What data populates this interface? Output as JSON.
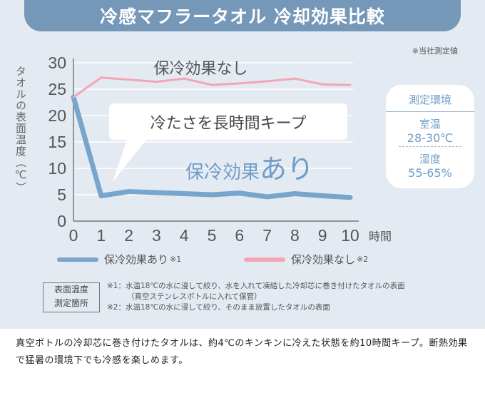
{
  "header": {
    "title": "冷感マフラータオル 冷却効果比較"
  },
  "note": "※当社測定値",
  "chart_data": {
    "type": "line",
    "ylabel": "タオルの表面温度（℃）",
    "xlabel": "時間",
    "x": [
      0,
      1,
      2,
      3,
      4,
      5,
      6,
      7,
      8,
      9,
      10
    ],
    "xlim": [
      0,
      10
    ],
    "ylim": [
      0,
      30
    ],
    "yticks": [
      0,
      5,
      10,
      15,
      20,
      25,
      30
    ],
    "series": [
      {
        "name": "保冷効果あり",
        "mark": "※1",
        "color": "#78a5cc",
        "values": [
          23.5,
          4.8,
          5.6,
          5.4,
          5.2,
          5.0,
          5.3,
          4.6,
          5.2,
          4.8,
          4.5
        ]
      },
      {
        "name": "保冷効果なし",
        "mark": "※2",
        "color": "#f4a5b5",
        "values": [
          23.5,
          27.2,
          26.8,
          26.4,
          27.0,
          25.8,
          26.1,
          26.5,
          27.0,
          25.9,
          25.8
        ]
      }
    ],
    "annotations": {
      "without_label": "保冷効果なし",
      "callout": "冷たさを長時間キープ",
      "with_label_part1": "保冷効果",
      "with_label_part2": "あり"
    }
  },
  "environment": {
    "title": "測定環境",
    "room_label": "室温",
    "room_value": "28-30℃",
    "humidity_label": "湿度",
    "humidity_value": "55-65%"
  },
  "measurement": {
    "box_line1": "表面温度",
    "box_line2": "測定箇所",
    "foot1": "※1：水温18℃の水に浸して絞り、水を入れて凍結した冷却芯に巻き付けたタオルの表面",
    "foot1b": "（真空ステンレスボトルに入れて保管）",
    "foot2": "※2：水温18℃の水に浸して絞り、そのまま放置したタオルの表面"
  },
  "description": "真空ボトルの冷却芯に巻き付けたタオルは、約4℃のキンキンに冷えた状態を約10時間キープ。断熱効果で猛暑の環境下でも冷感を楽しめます。"
}
